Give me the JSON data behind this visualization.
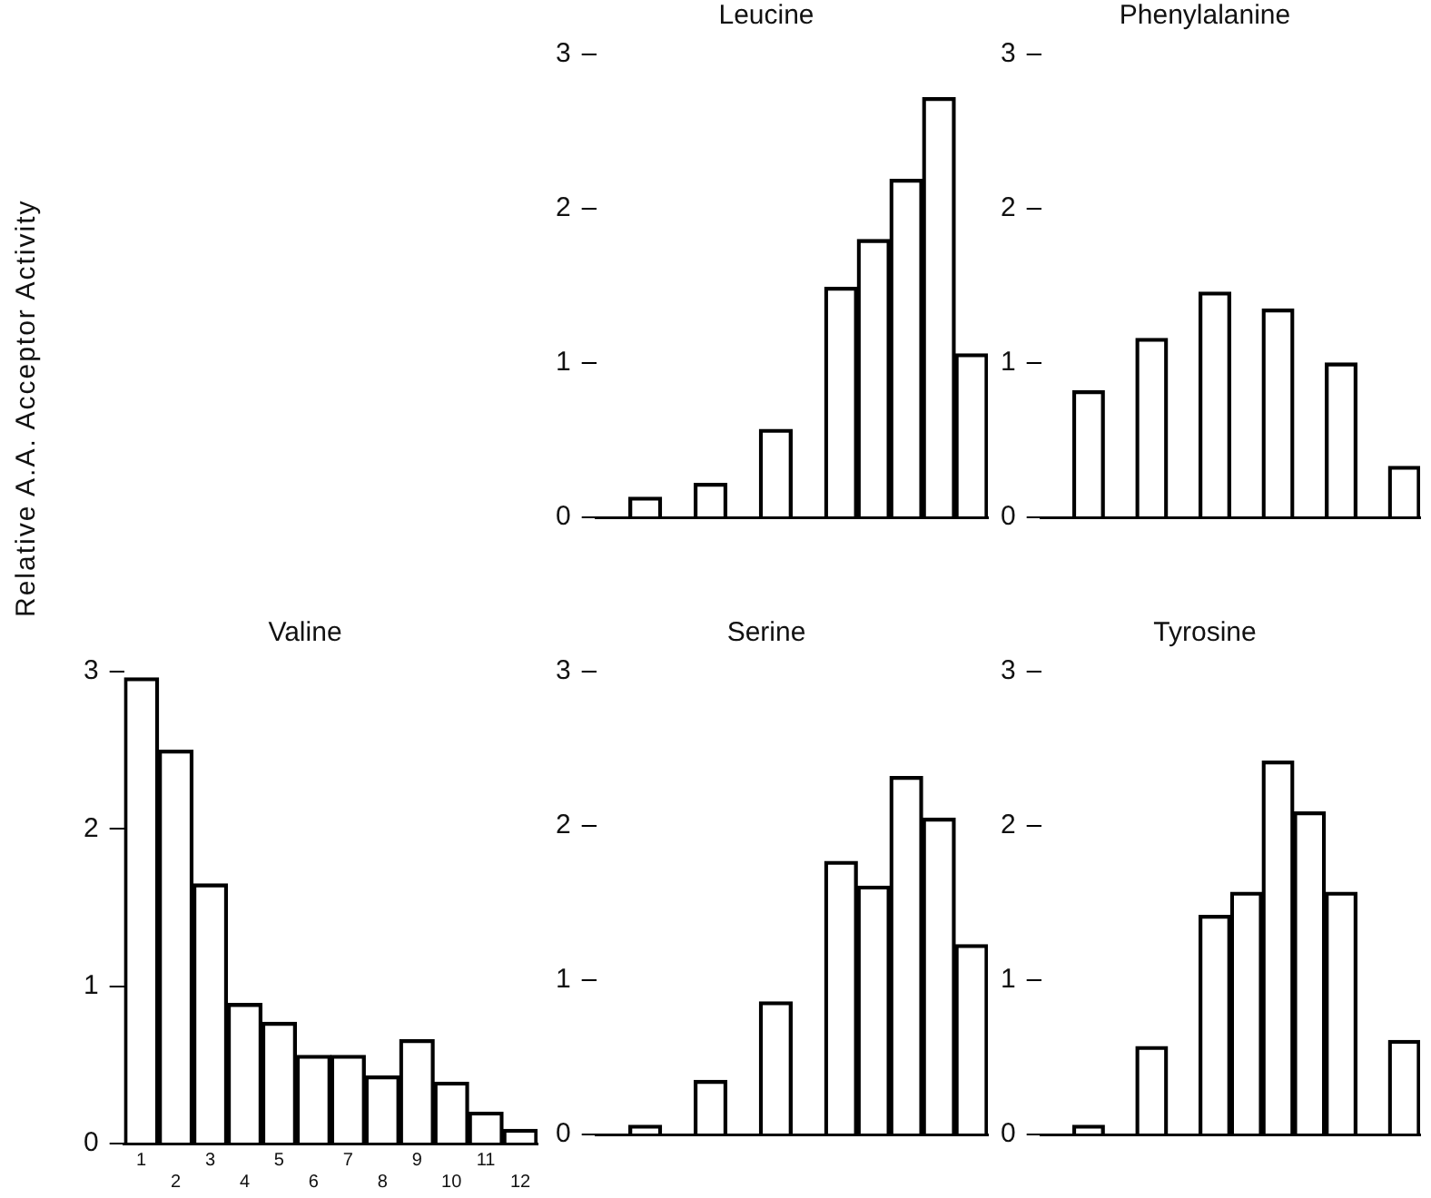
{
  "chart_data": [
    {
      "type": "bar",
      "title": "Leucine",
      "categories": [
        null,
        null,
        null,
        null,
        null,
        null,
        null,
        null,
        null,
        null,
        null,
        null
      ],
      "values": [
        0,
        0.13,
        0,
        0.22,
        0,
        0.57,
        0,
        1.49,
        1.8,
        2.19,
        2.72,
        1.06
      ],
      "color": "#000000",
      "ylim": [
        0,
        3
      ],
      "yticks": [
        0,
        1,
        2,
        3
      ],
      "tick_labels": "y",
      "grid": false
    },
    {
      "type": "bar",
      "title": "Phenylalanine",
      "categories": [
        null,
        null,
        null,
        null,
        null,
        null,
        null,
        null,
        null,
        null,
        null,
        null
      ],
      "values": [
        0,
        0.82,
        0,
        1.16,
        0,
        1.46,
        0,
        1.35,
        0,
        1.0,
        0,
        0.33
      ],
      "color": "#000000",
      "ylim": [
        0,
        3
      ],
      "yticks": [
        0,
        1,
        2,
        3
      ],
      "tick_labels": "y",
      "grid": false
    },
    {
      "type": "bar",
      "title": "Valine",
      "ylabel": "Relative A.A. Acceptor Activity",
      "categories": [
        "1",
        "2",
        "3",
        "4",
        "5",
        "6",
        "7",
        "8",
        "9",
        "10",
        "11",
        "12"
      ],
      "values": [
        2.96,
        2.5,
        1.65,
        0.89,
        0.77,
        0.56,
        0.56,
        0.43,
        0.66,
        0.39,
        0.2,
        0.09
      ],
      "color": "#000000",
      "ylim": [
        0,
        3
      ],
      "yticks": [
        0,
        1,
        2,
        3
      ],
      "grid": false
    },
    {
      "type": "bar",
      "title": "Serine",
      "categories": [
        null,
        null,
        null,
        null,
        null,
        null,
        null,
        null,
        null,
        null,
        null,
        null
      ],
      "values": [
        0,
        0.06,
        0,
        0.35,
        0,
        0.86,
        0,
        1.77,
        1.61,
        2.32,
        2.05,
        1.23
      ],
      "color": "#000000",
      "ylim": [
        0,
        3
      ],
      "yticks": [
        0,
        1,
        2,
        3
      ],
      "tick_labels": "y",
      "grid": false
    },
    {
      "type": "bar",
      "title": "Tyrosine",
      "categories": [
        null,
        null,
        null,
        null,
        null,
        null,
        null,
        null,
        null,
        null,
        null,
        null
      ],
      "values": [
        0,
        0.06,
        0,
        0.57,
        0,
        1.42,
        1.57,
        2.42,
        2.09,
        1.57,
        0,
        0.61
      ],
      "color": "#000000",
      "ylim": [
        0,
        3
      ],
      "yticks": [
        0,
        1,
        2,
        3
      ],
      "tick_labels": "y",
      "grid": false
    }
  ]
}
